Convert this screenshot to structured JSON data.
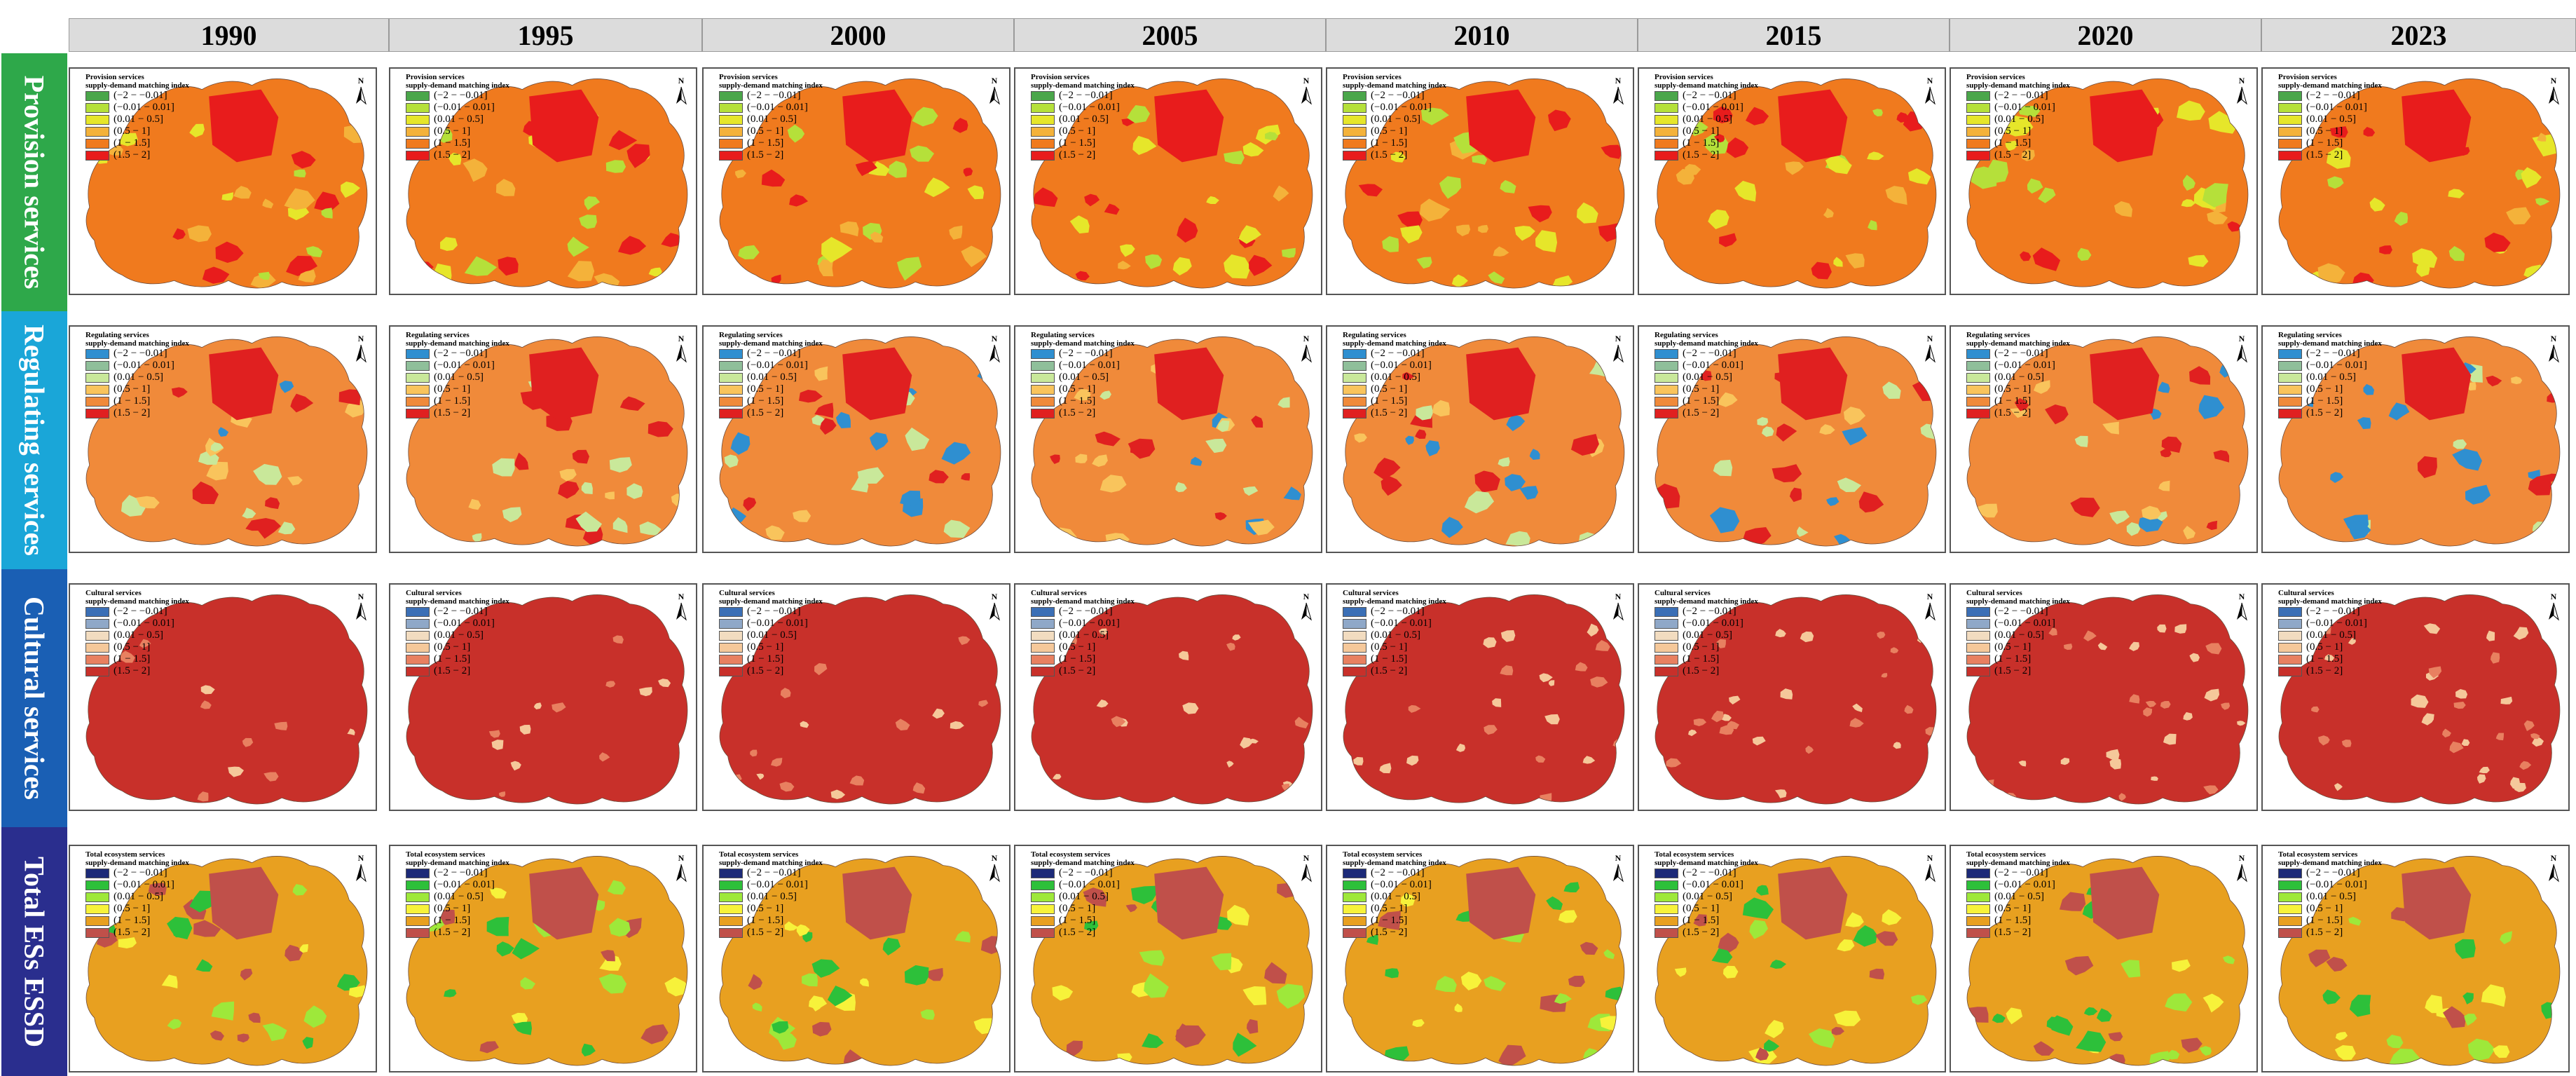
{
  "years": [
    "1990",
    "1995",
    "2000",
    "2005",
    "2010",
    "2015",
    "2020",
    "2023"
  ],
  "north_label": "N",
  "rows": [
    {
      "label": "Provision services",
      "label_color": "#2ea84a",
      "legend_title": [
        "Provision services",
        "supply-demand matching index"
      ],
      "classes": [
        "(−2 − −0.01]",
        "(−0.01 − 0.01]",
        "(0.01 − 0.5]",
        "(0.5 − 1]",
        "(1 − 1.5]",
        "(1.5 − 2]"
      ],
      "colors": [
        "#4aa64a",
        "#b5e03a",
        "#e6e62a",
        "#f4b23a",
        "#f07a1e",
        "#e81c1c"
      ],
      "base_color": "#f07a1e",
      "hot_color": "#e81c1c",
      "patch_colors": [
        "#e6e62a",
        "#b5e03a",
        "#f4b23a",
        "#e81c1c"
      ]
    },
    {
      "label": "Regulating services",
      "label_color": "#1aa6d8",
      "legend_title": [
        "Regulating services",
        "supply-demand matching index"
      ],
      "classes": [
        "(−2 − −0.01]",
        "(−0.01 − 0.01]",
        "(0.01 − 0.5]",
        "(0.5 − 1]",
        "(1 − 1.5]",
        "(1.5 − 2]"
      ],
      "colors": [
        "#2f8fd0",
        "#8fbf9a",
        "#c9e89a",
        "#f9c45c",
        "#f08a3a",
        "#e02020"
      ],
      "base_color": "#f08a3a",
      "hot_color": "#e02020",
      "patch_colors": [
        "#f9c45c",
        "#c9e89a",
        "#2f8fd0",
        "#e02020"
      ]
    },
    {
      "label": "Cultural services",
      "label_color": "#1a5fb4",
      "legend_title": [
        "Cultural services",
        "supply-demand matching index"
      ],
      "classes": [
        "(−2 − −0.01]",
        "(−0.01 − 0.01]",
        "(0.01 − 0.5]",
        "(0.5 − 1]",
        "(1 − 1.5]",
        "(1.5 − 2]"
      ],
      "colors": [
        "#3b6fb6",
        "#8fa8c8",
        "#f2dcc0",
        "#f5c89a",
        "#e88060",
        "#c8302a"
      ],
      "base_color": "#c8302a",
      "hot_color": "#c8302a",
      "patch_colors": [
        "#e88060",
        "#f5c89a"
      ]
    },
    {
      "label": "Total ESs ESSD",
      "label_color": "#2a2e8e",
      "legend_title": [
        "Total ecosystem services",
        "supply-demand matching index"
      ],
      "classes": [
        "(−2 − −0.01]",
        "(−0.01 − 0.01]",
        "(0.01 − 0.5]",
        "(0.5 − 1]",
        "(1 − 1.5]",
        "(1.5 − 2]"
      ],
      "colors": [
        "#1c2a78",
        "#2dc03a",
        "#9ee83a",
        "#f7f23a",
        "#e8a020",
        "#c0504a"
      ],
      "base_color": "#e8a020",
      "hot_color": "#c0504a",
      "patch_colors": [
        "#f7f23a",
        "#2dc03a",
        "#9ee83a",
        "#c0504a"
      ]
    }
  ]
}
